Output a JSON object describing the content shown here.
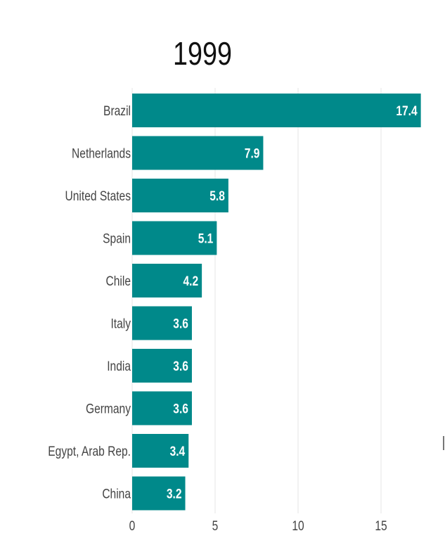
{
  "chart_data": {
    "type": "bar",
    "orientation": "horizontal",
    "title": "1999",
    "categories": [
      "Brazil",
      "Netherlands",
      "United States",
      "Spain",
      "Chile",
      "Italy",
      "India",
      "Germany",
      "Egypt, Arab Rep.",
      "China"
    ],
    "values": [
      17.4,
      7.9,
      5.8,
      5.1,
      4.2,
      3.6,
      3.6,
      3.6,
      3.4,
      3.2
    ],
    "value_labels": [
      "17.4",
      "7.9",
      "5.8",
      "5.1",
      "4.2",
      "3.6",
      "3.6",
      "3.6",
      "3.4",
      "3.2"
    ],
    "xticks": [
      0,
      5,
      10,
      15
    ],
    "xtick_labels": [
      "0",
      "5",
      "10",
      "15"
    ],
    "xlim": [
      0,
      18.8
    ],
    "xlabel": "",
    "ylabel": "",
    "grid": true,
    "bar_color": "#00898a"
  }
}
